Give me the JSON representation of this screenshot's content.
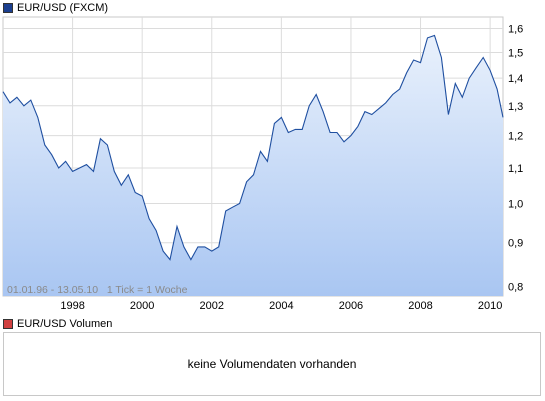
{
  "legend_main": {
    "label": "EUR/USD (FXCM)",
    "color": "#1b3f8f"
  },
  "legend_volume": {
    "label": "EUR/USD Volumen",
    "color": "#d04040"
  },
  "volume_panel": {
    "message": "keine Volumendaten vorhanden"
  },
  "chart_data": {
    "type": "area",
    "title": "EUR/USD (FXCM)",
    "range_note": "01.01.96 - 13.05.10   1 Tick = 1 Woche",
    "y_scale": "log",
    "ylim": [
      0.78,
      1.65
    ],
    "xlim": [
      1996.0,
      2010.37
    ],
    "y_ticks": [
      "1,6",
      "1,5",
      "1,4",
      "1,3",
      "1,2",
      "1,1",
      "1,0",
      "0,9",
      "0,8"
    ],
    "y_tick_values": [
      1.6,
      1.5,
      1.4,
      1.3,
      1.2,
      1.1,
      1.0,
      0.9,
      0.8
    ],
    "x_ticks": [
      "1998",
      "2000",
      "2002",
      "2004",
      "2006",
      "2008",
      "2010"
    ],
    "x_tick_values": [
      1998,
      2000,
      2002,
      2004,
      2006,
      2008,
      2010
    ],
    "grid": true,
    "line_color": "#1f4fa0",
    "fill_top_color": "#e9f1fc",
    "fill_bottom_color": "#a9c6f2",
    "series": [
      {
        "x": [
          1996.0,
          1996.2,
          1996.4,
          1996.6,
          1996.8,
          1997.0,
          1997.2,
          1997.4,
          1997.6,
          1997.8,
          1998.0,
          1998.2,
          1998.4,
          1998.6,
          1998.8,
          1999.0,
          1999.2,
          1999.4,
          1999.6,
          1999.8,
          2000.0,
          2000.2,
          2000.4,
          2000.6,
          2000.8,
          2001.0,
          2001.2,
          2001.4,
          2001.6,
          2001.8,
          2002.0,
          2002.2,
          2002.4,
          2002.6,
          2002.8,
          2003.0,
          2003.2,
          2003.4,
          2003.6,
          2003.8,
          2004.0,
          2004.2,
          2004.4,
          2004.6,
          2004.8,
          2005.0,
          2005.2,
          2005.4,
          2005.6,
          2005.8,
          2006.0,
          2006.2,
          2006.4,
          2006.6,
          2006.8,
          2007.0,
          2007.2,
          2007.4,
          2007.6,
          2007.8,
          2008.0,
          2008.2,
          2008.4,
          2008.6,
          2008.8,
          2009.0,
          2009.2,
          2009.4,
          2009.6,
          2009.8,
          2010.0,
          2010.2,
          2010.37
        ],
        "y": [
          1.35,
          1.31,
          1.33,
          1.3,
          1.32,
          1.26,
          1.17,
          1.14,
          1.1,
          1.12,
          1.09,
          1.1,
          1.11,
          1.09,
          1.19,
          1.17,
          1.09,
          1.05,
          1.08,
          1.03,
          1.02,
          0.96,
          0.93,
          0.88,
          0.86,
          0.94,
          0.89,
          0.86,
          0.89,
          0.89,
          0.88,
          0.89,
          0.98,
          0.99,
          1.0,
          1.06,
          1.08,
          1.15,
          1.12,
          1.24,
          1.26,
          1.21,
          1.22,
          1.22,
          1.3,
          1.34,
          1.28,
          1.21,
          1.21,
          1.18,
          1.2,
          1.23,
          1.28,
          1.27,
          1.29,
          1.31,
          1.34,
          1.36,
          1.42,
          1.47,
          1.46,
          1.56,
          1.57,
          1.48,
          1.27,
          1.38,
          1.33,
          1.4,
          1.44,
          1.48,
          1.43,
          1.36,
          1.26
        ]
      }
    ]
  }
}
